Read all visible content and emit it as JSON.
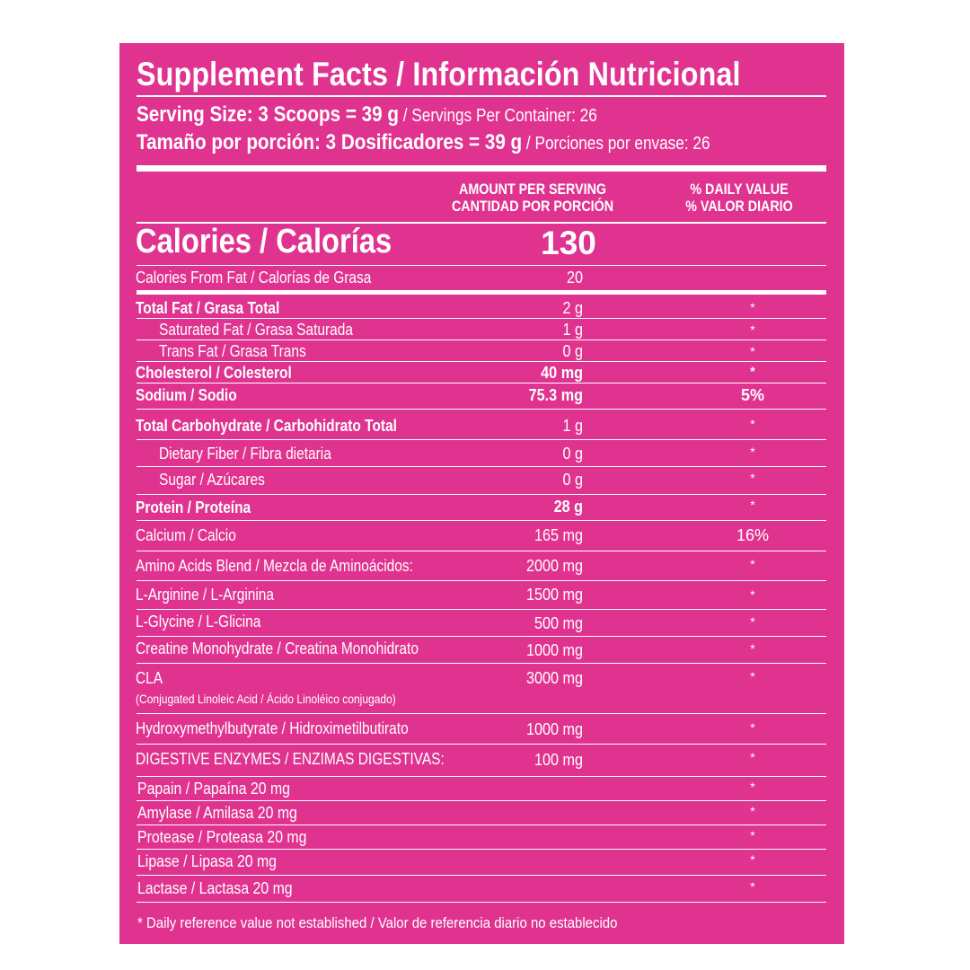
{
  "label": {
    "title": "Supplement Facts / Información Nutricional",
    "serving_en_bold": "Serving Size: 3 Scoops = 39 g",
    "serving_en_rest": " / Servings Per Container: 26",
    "serving_es_bold": "Tamaño por porción: 3 Dosificadores = 39 g",
    "serving_es_rest": " / Porciones por envase: 26",
    "col_amount_1": "AMOUNT PER SERVING",
    "col_amount_2": "CANTIDAD POR PORCIÓN",
    "col_dv_1": "% DAILY VALUE",
    "col_dv_2": "% VALOR DIARIO",
    "calories_label": "Calories / Calorías",
    "calories_value": "130",
    "fat_cal_label": "Calories From Fat / Calorías de Grasa",
    "fat_cal_value": "20",
    "footnote": "* Daily reference value not established / Valor de referencia diario no establecido"
  },
  "nutrients": [
    {
      "label": "Total Fat /  Grasa Total",
      "amount": "2 g",
      "dv": "*"
    },
    {
      "label": "Saturated Fat / Grasa Saturada",
      "amount": "1 g",
      "dv": "*"
    },
    {
      "label": "Trans Fat / Grasa Trans",
      "amount": "0 g",
      "dv": "*"
    },
    {
      "label": "Cholesterol / Colesterol",
      "amount": "40 mg",
      "dv": "*"
    },
    {
      "label": "Sodium / Sodio",
      "amount": "75.3 mg",
      "dv": "5%"
    },
    {
      "label": "Total Carbohydrate / Carbohidrato Total",
      "amount": "1 g",
      "dv": "*"
    },
    {
      "label": "Dietary Fiber / Fibra dietaria",
      "amount": "0 g",
      "dv": "*"
    },
    {
      "label": "Sugar / Azúcares",
      "amount": "0 g",
      "dv": "*"
    },
    {
      "label": "Protein / Proteína",
      "amount": "28 g",
      "dv": "*"
    },
    {
      "label": "Calcium / Calcio",
      "amount": "165 mg",
      "dv": "16%"
    },
    {
      "label": "Amino Acids Blend / Mezcla de Aminoácidos:",
      "amount": "2000 mg",
      "dv": "*"
    },
    {
      "label": "L-Arginine / L-Arginina",
      "amount": "1500 mg",
      "dv": "*"
    },
    {
      "label": "L-Glycine / L-Glicina",
      "amount": "500 mg",
      "dv": "*"
    },
    {
      "label": "Creatine Monohydrate / Creatina Monohidrato",
      "amount": "1000 mg",
      "dv": "*"
    },
    {
      "label": "CLA",
      "sub": "(Conjugated Linoleic Acid / Ácido Linoléico conjugado)",
      "amount": "3000 mg",
      "dv": "*"
    },
    {
      "label": "Hydroxymethylbutyrate / Hidroximetilbutirato",
      "amount": "1000 mg",
      "dv": "*"
    },
    {
      "label": "DIGESTIVE ENZYMES / ENZIMAS DIGESTIVAS:",
      "amount": "100 mg",
      "dv": "*"
    }
  ],
  "enzymes": [
    {
      "label": "Papain / Papaína  20 mg",
      "dv": "*"
    },
    {
      "label": "Amylase / Amilasa  20 mg",
      "dv": "*"
    },
    {
      "label": "Protease / Proteasa  20 mg",
      "dv": "*"
    },
    {
      "label": "Lipase / Lipasa  20 mg",
      "dv": "*"
    },
    {
      "label": "Lactase / Lactasa  20 mg",
      "dv": "*"
    }
  ],
  "colors": {
    "panel": "#e0338f",
    "text": "#ffffff",
    "background": "#ffffff"
  }
}
